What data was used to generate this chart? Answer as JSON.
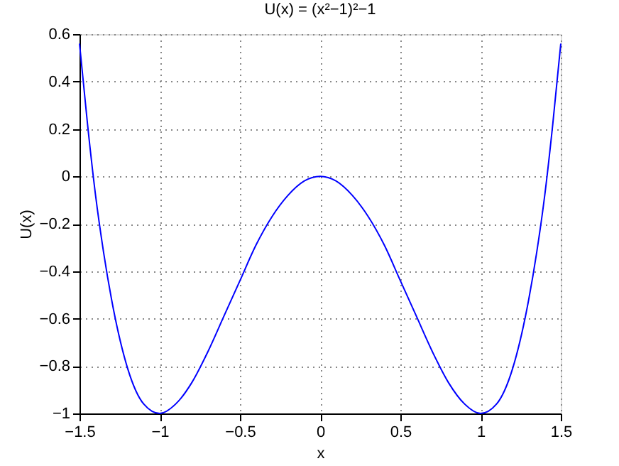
{
  "chart_data": {
    "type": "line",
    "title": "U(x) = (x²−1)²−1",
    "xlabel": "x",
    "ylabel": "U(x)",
    "x": [
      -1.5,
      -1.45,
      -1.4,
      -1.35,
      -1.3,
      -1.2,
      -1.1,
      -1.0,
      -0.9,
      -0.8,
      -0.7,
      -0.6,
      -0.5,
      -0.4,
      -0.3,
      -0.2,
      -0.1,
      0,
      0.1,
      0.2,
      0.3,
      0.4,
      0.5,
      0.6,
      0.7,
      0.8,
      0.9,
      1.0,
      1.1,
      1.2,
      1.3,
      1.35,
      1.4,
      1.45,
      1.5
    ],
    "series": [
      {
        "color": "#0000ff",
        "values": [
          0.56,
          0.22,
          -0.08,
          -0.32,
          -0.52,
          -0.81,
          -0.96,
          -1.0,
          -0.96,
          -0.87,
          -0.74,
          -0.59,
          -0.44,
          -0.29,
          -0.17,
          -0.08,
          -0.02,
          0,
          -0.02,
          -0.08,
          -0.17,
          -0.29,
          -0.44,
          -0.59,
          -0.74,
          -0.87,
          -0.96,
          -1.0,
          -0.96,
          -0.81,
          -0.52,
          -0.32,
          -0.08,
          0.22,
          0.56
        ]
      }
    ],
    "xlim": [
      -1.5,
      1.5
    ],
    "xticks": [
      -1.5,
      -1,
      -0.5,
      0,
      0.5,
      1,
      1.5
    ],
    "ylim": [
      -1,
      0.6
    ],
    "yticks": [
      -1,
      -0.8,
      -0.6,
      -0.4,
      -0.2,
      0,
      0.2,
      0.4,
      0.6
    ],
    "grid": true,
    "line_style": "solid"
  }
}
